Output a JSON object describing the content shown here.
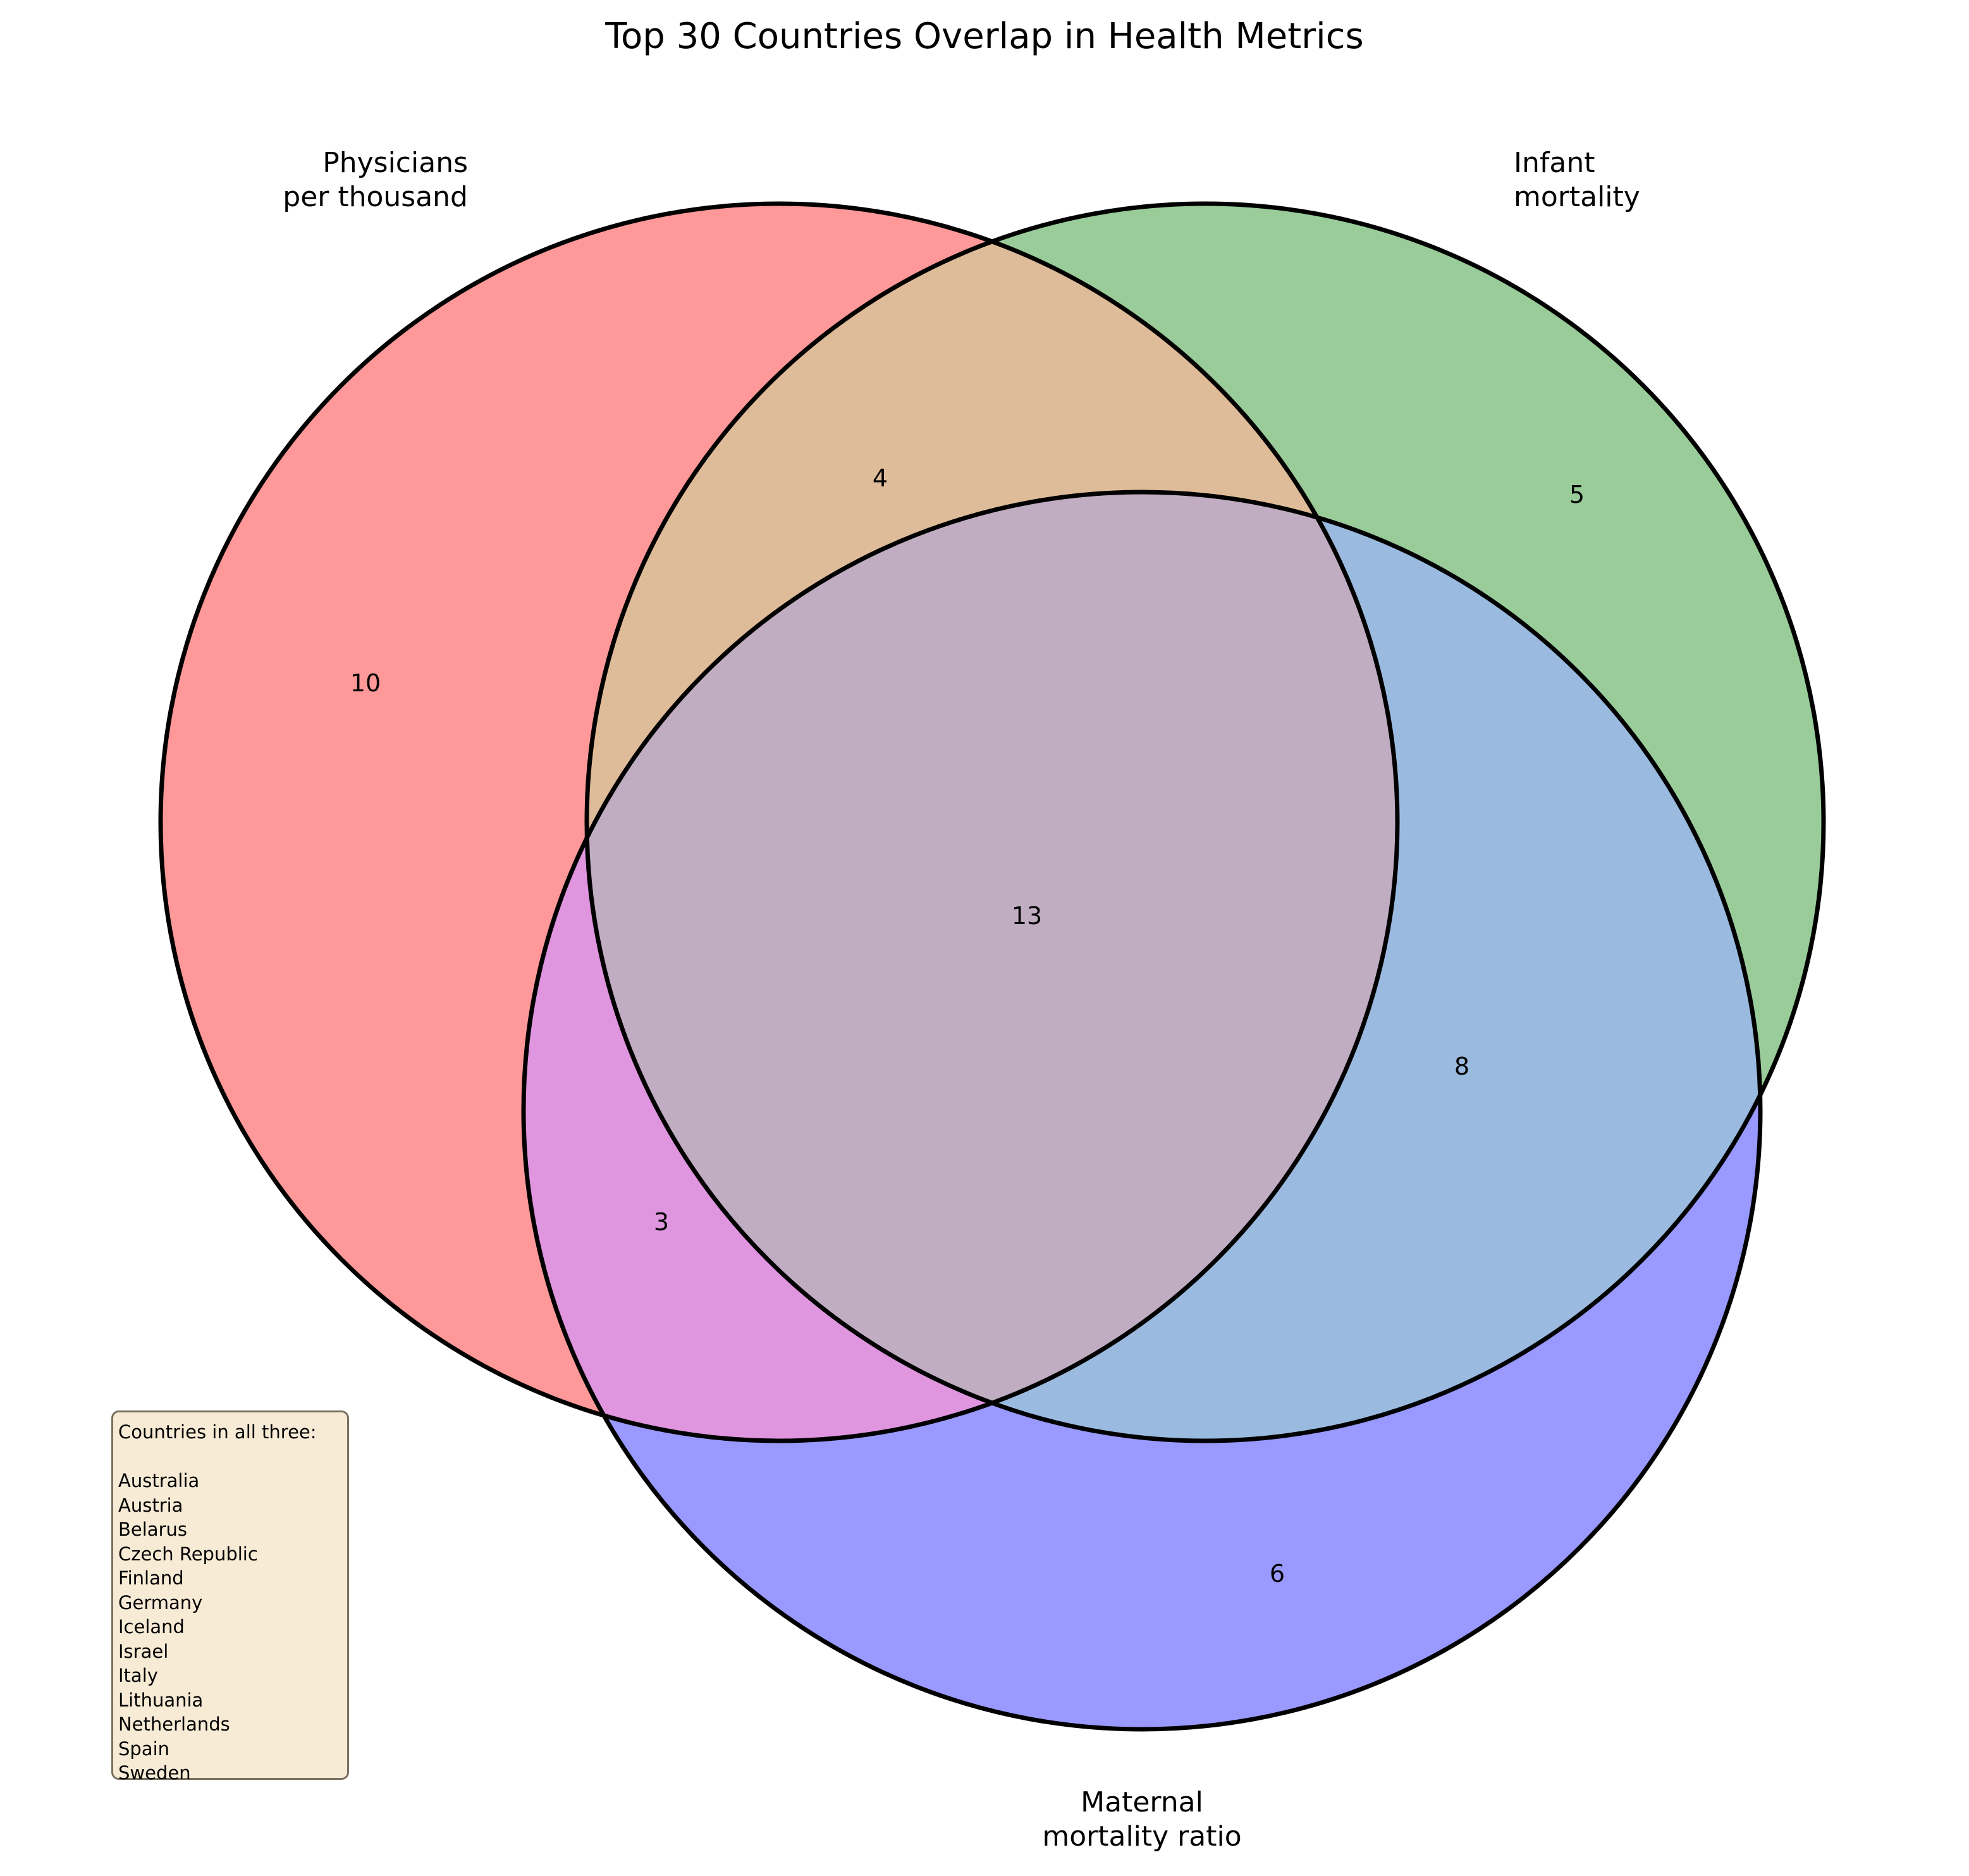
{
  "title": "Top 30 Countries Overlap in Health Metrics",
  "sets": [
    {
      "id": "A",
      "label_line1": "Physicians",
      "label_line2": "per thousand",
      "color": "#ff9999"
    },
    {
      "id": "B",
      "label_line1": "Infant",
      "label_line2": "mortality",
      "color": "#99cc99"
    },
    {
      "id": "C",
      "label_line1": "Maternal",
      "label_line2": "mortality ratio",
      "color": "#9999ff"
    }
  ],
  "regions": {
    "A_only": "10",
    "B_only": "5",
    "C_only": "6",
    "AB_only": "4",
    "AC_only": "3",
    "BC_only": "8",
    "ABC": "13"
  },
  "region_colors": {
    "AB": "#dfbc99",
    "AC": "#df96df",
    "BC": "#9abbdf",
    "ABC": "#c0adc2"
  },
  "legend": {
    "heading": "Countries in all three:",
    "countries": [
      "Australia",
      "Austria",
      "Belarus",
      "Czech Republic",
      "Finland",
      "Germany",
      "Iceland",
      "Israel",
      "Italy",
      "Lithuania",
      "Netherlands",
      "Spain",
      "Sweden"
    ]
  }
}
